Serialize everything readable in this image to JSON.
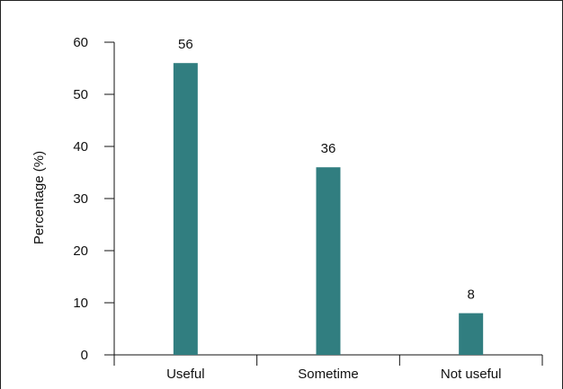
{
  "chart_data": {
    "type": "bar",
    "categories": [
      "Useful",
      "Sometime",
      "Not useful"
    ],
    "values": [
      56,
      36,
      8
    ],
    "data_labels": [
      "56",
      "36",
      "8"
    ],
    "title": "",
    "xlabel": "",
    "ylabel": "Percentage (%)",
    "ylim": [
      0,
      60
    ],
    "yticks": [
      0,
      10,
      20,
      30,
      40,
      50,
      60
    ],
    "ytick_labels": [
      "0",
      "10",
      "20",
      "30",
      "40",
      "50",
      "60"
    ],
    "bar_color": "#317e80",
    "grid": false,
    "legend": "none"
  }
}
